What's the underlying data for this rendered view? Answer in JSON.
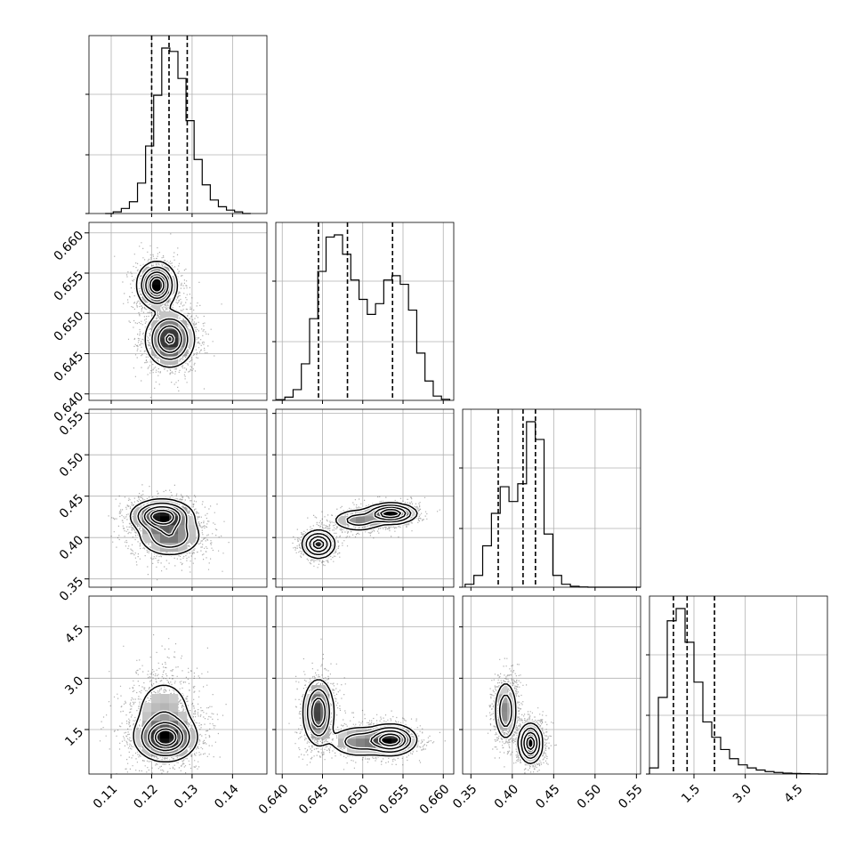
{
  "chart_data": {
    "type": "corner",
    "title": "",
    "grid": true,
    "parameters": [
      {
        "ticks": [
          "0.11",
          "0.12",
          "0.13",
          "0.14"
        ],
        "tick_values": [
          0.11,
          0.12,
          0.13,
          0.14
        ],
        "range": [
          0.1045,
          0.1485
        ],
        "quantiles": [
          0.12,
          0.1243,
          0.1288
        ],
        "hist_values": [
          0,
          1,
          3,
          7,
          18,
          40,
          70,
          98,
          96,
          80,
          55,
          32,
          17,
          8,
          4,
          2,
          1,
          0
        ]
      },
      {
        "ticks": [
          "0.640",
          "0.645",
          "0.650",
          "0.655",
          "0.660"
        ],
        "tick_values": [
          0.64,
          0.645,
          0.65,
          0.655,
          0.66
        ],
        "range": [
          0.6392,
          0.6613
        ],
        "quantiles": [
          0.6445,
          0.6481,
          0.6537
        ],
        "hist_values": [
          0.3,
          1.5,
          5,
          17,
          38,
          60,
          76,
          77,
          68,
          56,
          47,
          40,
          45,
          56,
          58,
          54,
          42,
          22,
          9,
          2,
          0.5
        ]
      },
      {
        "ticks": [
          "0.35",
          "0.40",
          "0.45",
          "0.50",
          "0.55"
        ],
        "tick_values": [
          0.35,
          0.4,
          0.45,
          0.5,
          0.55
        ],
        "range": [
          0.34,
          0.555
        ],
        "quantiles": [
          0.383,
          0.413,
          0.428
        ],
        "hist_values": [
          1,
          4,
          14,
          25,
          34,
          29,
          35,
          56,
          50,
          18,
          4,
          1,
          0.3,
          0.1,
          0,
          0,
          0,
          0,
          0,
          0
        ]
      },
      {
        "ticks": [
          "1.5",
          "3.0",
          "4.5"
        ],
        "tick_values": [
          1.5,
          3.0,
          4.5
        ],
        "range": [
          0.2,
          5.4
        ],
        "quantiles": [
          0.9,
          1.3,
          2.1
        ],
        "hist_values": [
          2,
          25,
          50,
          54,
          43,
          30,
          17,
          12,
          8,
          5,
          3,
          2,
          1.3,
          0.8,
          0.5,
          0.3,
          0.2,
          0.1,
          0.05,
          0
        ]
      }
    ],
    "pairs": [
      {
        "col": 0,
        "row": 1,
        "modes": [
          {
            "x": 0.1213,
            "y": 0.6535,
            "sx": 0.0022,
            "sy": 0.0013,
            "w": 0.45
          },
          {
            "x": 0.1245,
            "y": 0.6468,
            "sx": 0.0028,
            "sy": 0.0016,
            "w": 0.55
          }
        ]
      },
      {
        "col": 0,
        "row": 2,
        "modes": [
          {
            "x": 0.1225,
            "y": 0.426,
            "sx": 0.0034,
            "sy": 0.009,
            "w": 0.6
          },
          {
            "x": 0.1245,
            "y": 0.402,
            "sx": 0.0038,
            "sy": 0.012,
            "w": 0.4
          }
        ]
      },
      {
        "col": 1,
        "row": 2,
        "modes": [
          {
            "x": 0.6445,
            "y": 0.392,
            "sx": 0.0009,
            "sy": 0.0075,
            "w": 0.35
          },
          {
            "x": 0.6495,
            "y": 0.421,
            "sx": 0.0016,
            "sy": 0.0065,
            "w": 0.2
          },
          {
            "x": 0.6535,
            "y": 0.429,
            "sx": 0.0014,
            "sy": 0.0055,
            "w": 0.45
          }
        ]
      },
      {
        "col": 0,
        "row": 3,
        "modes": [
          {
            "x": 0.1235,
            "y": 1.25,
            "sx": 0.0034,
            "sy": 0.3,
            "w": 0.65
          },
          {
            "x": 0.123,
            "y": 1.95,
            "sx": 0.004,
            "sy": 0.6,
            "w": 0.35
          }
        ]
      },
      {
        "col": 1,
        "row": 3,
        "modes": [
          {
            "x": 0.6445,
            "y": 2.0,
            "sx": 0.0009,
            "sy": 0.45,
            "w": 0.4
          },
          {
            "x": 0.6495,
            "y": 1.15,
            "sx": 0.0018,
            "sy": 0.22,
            "w": 0.2
          },
          {
            "x": 0.6535,
            "y": 1.2,
            "sx": 0.0014,
            "sy": 0.2,
            "w": 0.4
          }
        ]
      },
      {
        "col": 2,
        "row": 3,
        "modes": [
          {
            "x": 0.392,
            "y": 2.05,
            "sx": 0.0065,
            "sy": 0.42,
            "w": 0.42
          },
          {
            "x": 0.422,
            "y": 1.1,
            "sx": 0.0065,
            "sy": 0.26,
            "w": 0.58
          }
        ]
      }
    ]
  }
}
